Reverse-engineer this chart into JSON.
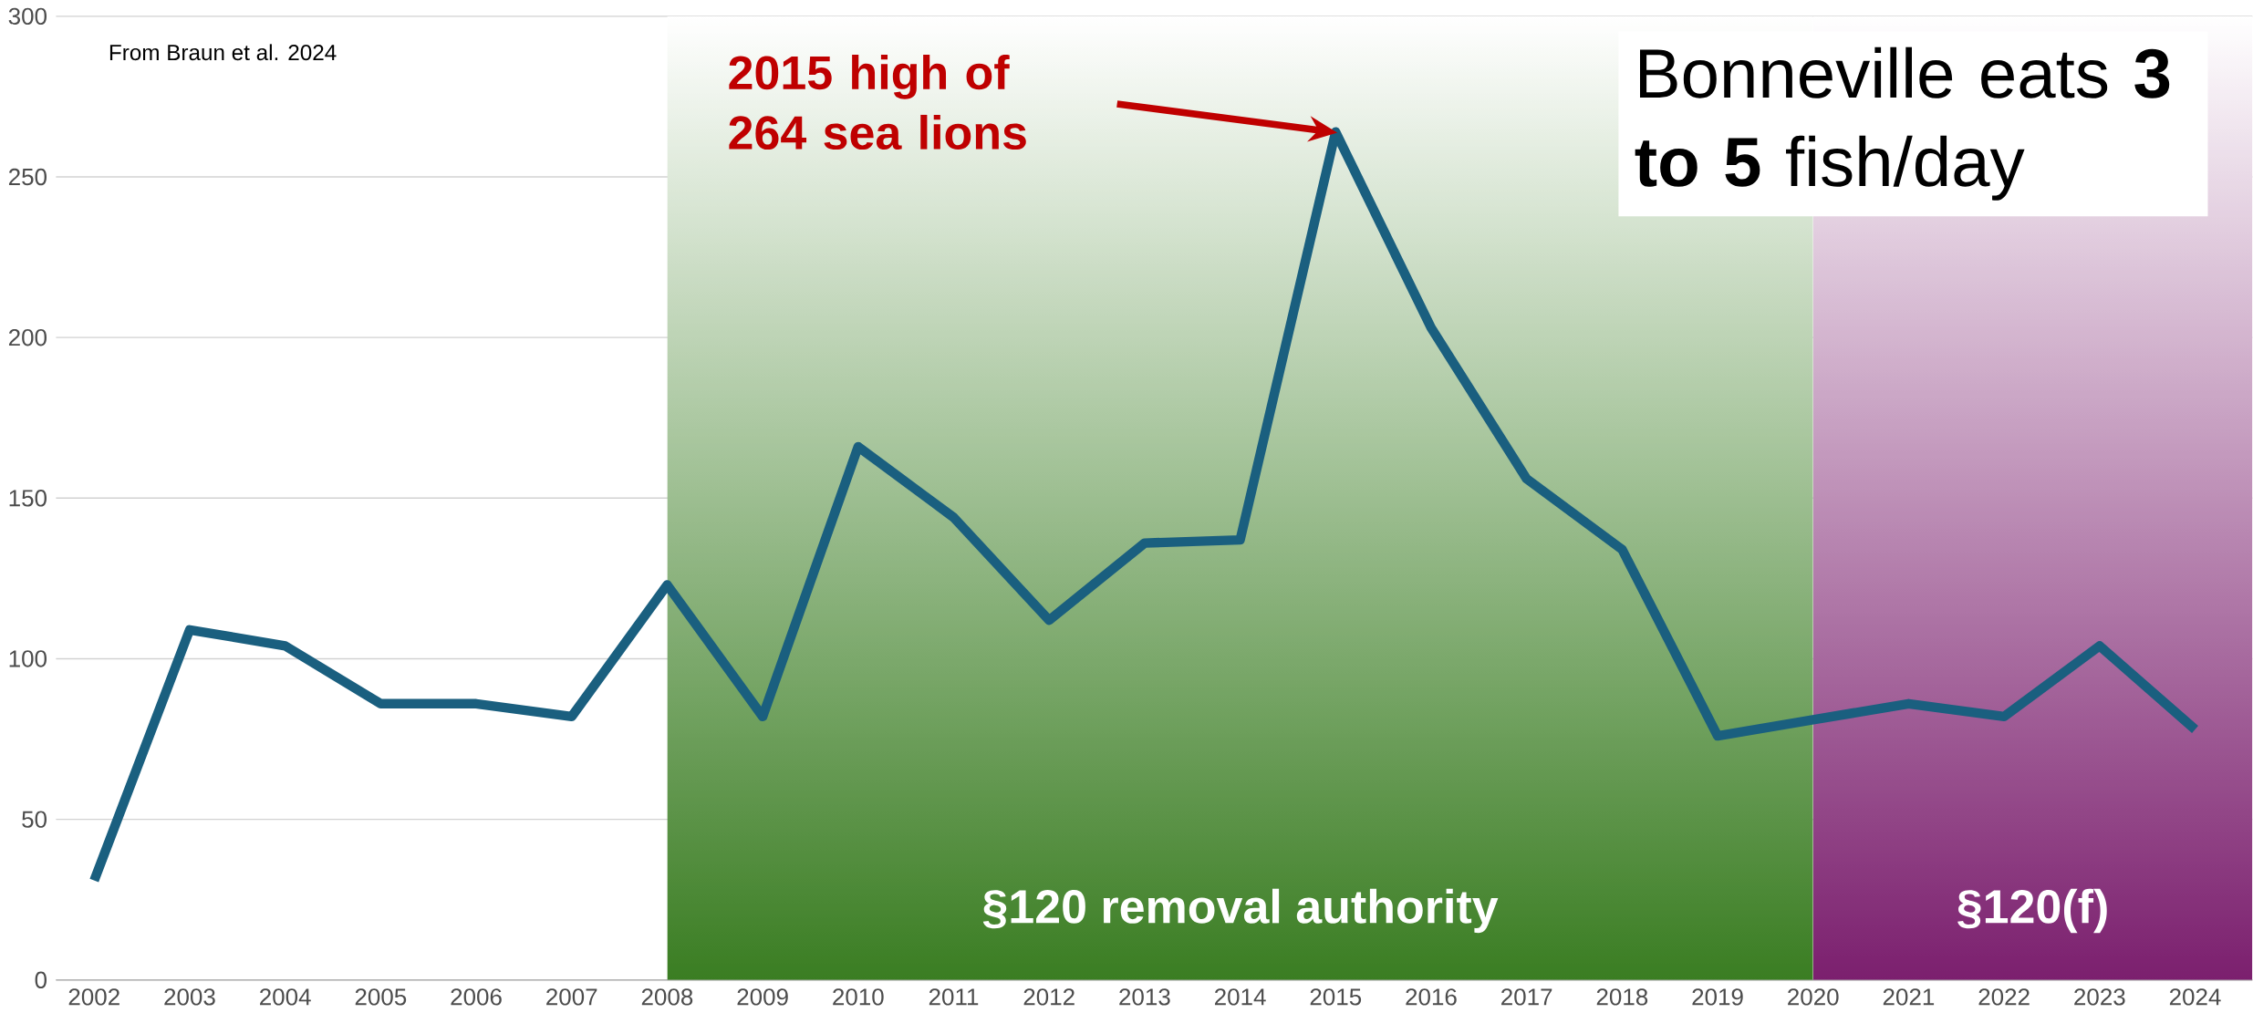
{
  "chart_data": {
    "type": "line",
    "x": [
      2002,
      2003,
      2004,
      2005,
      2006,
      2007,
      2008,
      2009,
      2010,
      2011,
      2012,
      2013,
      2014,
      2015,
      2016,
      2017,
      2018,
      2019,
      2020,
      2021,
      2022,
      2023,
      2024
    ],
    "series": [
      {
        "color": "#1a5f7f",
        "values": [
          31,
          109,
          104,
          86,
          86,
          82,
          123,
          82,
          166,
          144,
          112,
          136,
          137,
          264,
          203,
          156,
          134,
          76,
          81,
          86,
          82,
          104,
          78
        ]
      }
    ],
    "xlim": [
      2001.6,
      2024.6
    ],
    "xticks": [
      2002,
      2003,
      2004,
      2005,
      2006,
      2007,
      2008,
      2009,
      2010,
      2011,
      2012,
      2013,
      2014,
      2015,
      2016,
      2017,
      2018,
      2019,
      2020,
      2021,
      2022,
      2023,
      2024
    ],
    "ylim": [
      0,
      300
    ],
    "yticks": [
      0,
      50,
      100,
      150,
      200,
      250,
      300
    ],
    "grid": "y",
    "bands": [
      {
        "axis": "x",
        "from": 2008,
        "to": 2020,
        "label": "§120 removal authority",
        "color": "#3a7d22"
      },
      {
        "axis": "x",
        "from": 2020,
        "to": 2024.6,
        "label": "§120(f)",
        "color": "#7b1f6e"
      }
    ],
    "annotations": [
      "From Braun et al. 2024",
      "2015 high of 264 sea lions",
      "Bonneville eats **3 to 5** fish/day"
    ]
  }
}
